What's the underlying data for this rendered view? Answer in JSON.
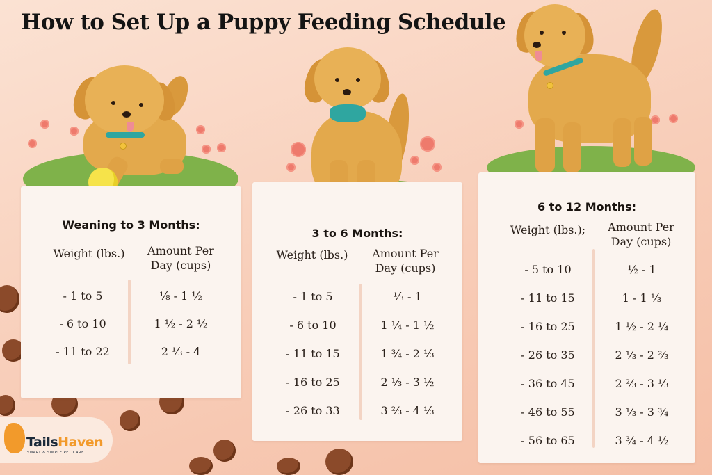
{
  "title": "How to Set Up a Puppy Feeding Schedule",
  "colors": {
    "background": "#f8cdb8",
    "card": "#fbf4ef",
    "fur": "#e3a94c",
    "grass": "#7fb24a",
    "collar": "#2fa6a0",
    "kibble": "#8b4a2a",
    "logo_accent": "#f29a2b"
  },
  "cards": [
    {
      "title": "Weaning to 3 Months:",
      "weight_header": "Weight (lbs.)",
      "amount_header_line1": "Amount Per",
      "amount_header_line2": "Day (cups)",
      "rows": [
        {
          "weight": "- 1 to 5",
          "amount": "⅛ - 1 ½"
        },
        {
          "weight": "- 6 to 10",
          "amount": "1 ½ - 2 ½"
        },
        {
          "weight": "- 11 to 22",
          "amount": "2 ⅓ - 4"
        }
      ]
    },
    {
      "title": "3 to 6 Months:",
      "weight_header": "Weight (lbs.)",
      "amount_header_line1": "Amount Per",
      "amount_header_line2": "Day (cups)",
      "rows": [
        {
          "weight": "- 1 to 5",
          "amount": "⅓ - 1"
        },
        {
          "weight": "- 6 to 10",
          "amount": "1 ¼ - 1 ½"
        },
        {
          "weight": "- 11 to 15",
          "amount": "1 ¾ - 2 ⅓"
        },
        {
          "weight": "- 16 to 25",
          "amount": "2 ⅓ - 3 ½"
        },
        {
          "weight": "- 26 to 33",
          "amount": "3 ⅔ - 4 ⅓"
        }
      ]
    },
    {
      "title": "6 to 12 Months:",
      "weight_header": "Weight (lbs.);",
      "amount_header_line1": "Amount Per",
      "amount_header_line2": "Day (cups)",
      "rows": [
        {
          "weight": "- 5 to 10",
          "amount": "½ - 1"
        },
        {
          "weight": "- 11 to 15",
          "amount": "1 - 1 ⅓"
        },
        {
          "weight": "- 16 to 25",
          "amount": "1 ½ - 2 ¼"
        },
        {
          "weight": "- 26 to 35",
          "amount": "2 ⅓ - 2 ⅔"
        },
        {
          "weight": "- 36 to 45",
          "amount": "2 ⅔ - 3 ⅓"
        },
        {
          "weight": "- 46 to 55",
          "amount": "3 ⅓ - 3 ¾"
        },
        {
          "weight": "- 56 to 65",
          "amount": "3 ¾ - 4 ½"
        }
      ]
    }
  ],
  "logo": {
    "name_part1": "Tails",
    "name_part2": "Haven",
    "tagline": "SMART & SIMPLE PET CARE",
    "icon": "dog-head-icon"
  }
}
